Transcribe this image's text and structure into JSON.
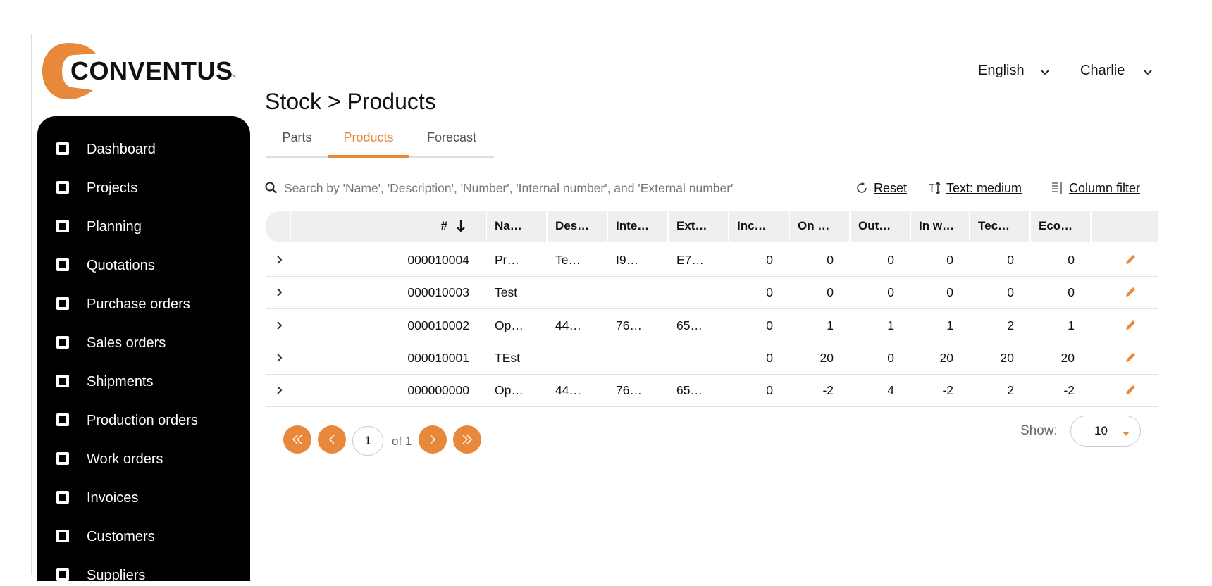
{
  "brand": {
    "logo": "CONVENTUS",
    "trademark": "TM"
  },
  "topbar": {
    "language": "English",
    "user": "Charlie"
  },
  "nav": [
    "Dashboard",
    "Projects",
    "Planning",
    "Quotations",
    "Purchase orders",
    "Sales orders",
    "Shipments",
    "Production orders",
    "Work orders",
    "Invoices",
    "Customers",
    "Suppliers"
  ],
  "page": {
    "breadcrumb": "Stock > Products",
    "tabs": [
      "Parts",
      "Products",
      "Forecast"
    ],
    "active_tab": 1
  },
  "toolbar": {
    "search_placeholder": "Search by 'Name', 'Description', 'Number', 'Internal number', and 'External number'",
    "reset": "Reset",
    "text_size": "Text: medium",
    "column_filter": "Column filter"
  },
  "table": {
    "columns": [
      "#",
      "Na…",
      "Des…",
      "Inte…",
      "Ext…",
      "Inc…",
      "On …",
      "Out…",
      "In w…",
      "Tec…",
      "Eco…"
    ],
    "rows": [
      [
        "000010004",
        "Pr…",
        "Te…",
        "I9…",
        "E7…",
        0,
        0,
        0,
        0,
        0,
        0
      ],
      [
        "000010003",
        "Test",
        null,
        null,
        null,
        0,
        0,
        0,
        0,
        0,
        0
      ],
      [
        "000010002",
        "Op…",
        "44…",
        "76…",
        "65…",
        0,
        1,
        1,
        1,
        2,
        1
      ],
      [
        "000010001",
        "TEst",
        null,
        null,
        null,
        0,
        20,
        0,
        20,
        20,
        20
      ],
      [
        "000000000",
        "Op…",
        "44…",
        "76…",
        "65…",
        0,
        -2,
        4,
        -2,
        2,
        -2
      ]
    ]
  },
  "pagination": {
    "page": 1,
    "of": "of 1",
    "show_label": "Show:",
    "show_value": 10
  }
}
